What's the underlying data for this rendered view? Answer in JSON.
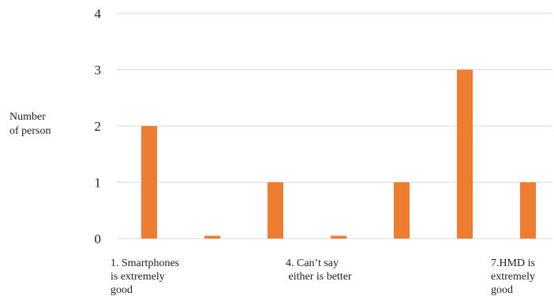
{
  "chart_data": {
    "type": "bar",
    "ylabel": "Number\nof person",
    "xlabel": "",
    "ylim": [
      0,
      4
    ],
    "yticks": [
      0,
      1,
      2,
      3,
      4
    ],
    "grid": true,
    "bar_color": "#ED7D31",
    "grid_color": "#D9D9D9",
    "categories": [
      "1. Smartphones\nis extremely\ngood",
      "",
      "",
      "4. Can’t say\n either is better",
      "",
      "",
      "7.HMD is\nextremely\ngood"
    ],
    "series": [
      {
        "values": [
          2,
          0.05,
          1,
          0.05,
          1,
          3,
          1
        ]
      }
    ]
  }
}
